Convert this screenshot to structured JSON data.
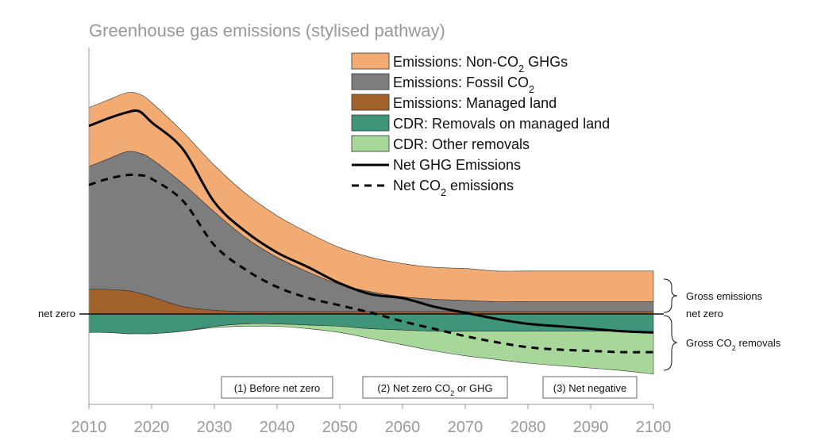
{
  "chart_data": {
    "type": "area",
    "title": "Greenhouse gas emissions (stylised pathway)",
    "xlabel": "",
    "ylabel": "",
    "xlim": [
      2010,
      2100
    ],
    "ylim": [
      -0.55,
      2.4
    ],
    "x": [
      2010,
      2013,
      2016,
      2018,
      2020,
      2025,
      2030,
      2035,
      2040,
      2045,
      2050,
      2055,
      2060,
      2065,
      2070,
      2075,
      2080,
      2085,
      2090,
      2095,
      2100
    ],
    "x_ticks": [
      "2010",
      "2020",
      "2030",
      "2040",
      "2050",
      "2060",
      "2070",
      "2080",
      "2090",
      "2100"
    ],
    "series": [
      {
        "name": "Emissions: Non-CO",
        "sub": "2",
        "name_tail": " GHGs",
        "color": "#f2ac73",
        "values": [
          0.48,
          0.48,
          0.48,
          0.48,
          0.46,
          0.42,
          0.38,
          0.36,
          0.34,
          0.32,
          0.3,
          0.28,
          0.27,
          0.26,
          0.26,
          0.25,
          0.25,
          0.25,
          0.25,
          0.25,
          0.25
        ]
      },
      {
        "name": "Emissions: Fossil CO",
        "sub": "2",
        "name_tail": "",
        "color": "#7d7d7d",
        "values": [
          1.0,
          1.06,
          1.13,
          1.14,
          1.12,
          1.0,
          0.8,
          0.6,
          0.44,
          0.32,
          0.22,
          0.16,
          0.12,
          0.1,
          0.09,
          0.08,
          0.08,
          0.08,
          0.08,
          0.08,
          0.08
        ]
      },
      {
        "name": "Emissions: Managed land",
        "sub": "",
        "name_tail": "",
        "color": "#a0612a",
        "values": [
          0.2,
          0.2,
          0.19,
          0.17,
          0.14,
          0.06,
          0.03,
          0.02,
          0.02,
          0.02,
          0.02,
          0.02,
          0.02,
          0.02,
          0.02,
          0.02,
          0.02,
          0.02,
          0.02,
          0.02,
          0.02
        ]
      },
      {
        "name": "CDR: Removals on managed land",
        "sub": "",
        "name_tail": "",
        "color": "#3f9579",
        "values": [
          -0.15,
          -0.15,
          -0.16,
          -0.16,
          -0.16,
          -0.14,
          -0.1,
          -0.08,
          -0.08,
          -0.09,
          -0.1,
          -0.12,
          -0.13,
          -0.14,
          -0.14,
          -0.14,
          -0.14,
          -0.14,
          -0.14,
          -0.14,
          -0.15
        ]
      },
      {
        "name": "CDR: Other removals",
        "sub": "",
        "name_tail": "",
        "color": "#a7d89a",
        "values": [
          0,
          0,
          0,
          0,
          0,
          0,
          -0.01,
          -0.02,
          -0.02,
          -0.03,
          -0.05,
          -0.08,
          -0.12,
          -0.16,
          -0.2,
          -0.23,
          -0.26,
          -0.28,
          -0.3,
          -0.32,
          -0.34
        ]
      },
      {
        "name": "Net GHG Emissions",
        "sub": "",
        "name_tail": "",
        "color": "#000000",
        "style": "solid",
        "values": [
          1.53,
          1.59,
          1.64,
          1.65,
          1.56,
          1.34,
          0.91,
          0.67,
          0.5,
          0.38,
          0.25,
          0.16,
          0.13,
          0.06,
          0.01,
          -0.04,
          -0.08,
          -0.1,
          -0.12,
          -0.14,
          -0.15
        ]
      },
      {
        "name": "Net CO",
        "sub": "2",
        "name_tail": " emissions",
        "color": "#000000",
        "style": "dashed",
        "values": [
          1.05,
          1.1,
          1.13,
          1.13,
          1.1,
          0.92,
          0.56,
          0.36,
          0.22,
          0.13,
          0.07,
          0.01,
          -0.06,
          -0.12,
          -0.18,
          -0.23,
          -0.27,
          -0.29,
          -0.3,
          -0.31,
          -0.31
        ]
      }
    ],
    "annotations": {
      "net_zero_left": "net zero",
      "net_zero_right": "net zero",
      "gross_emissions": "Gross emissions",
      "gross_removals": "Gross CO",
      "gross_removals_sub": "2",
      "gross_removals_tail": " removals"
    },
    "phases": [
      {
        "label": "(1) Before net zero",
        "sub": "",
        "tail": ""
      },
      {
        "label": "(2) Net zero CO",
        "sub": "2",
        "tail": " or GHG"
      },
      {
        "label": "(3) Net negative",
        "sub": "",
        "tail": ""
      }
    ],
    "legend_position": "top-right",
    "grid": false
  }
}
